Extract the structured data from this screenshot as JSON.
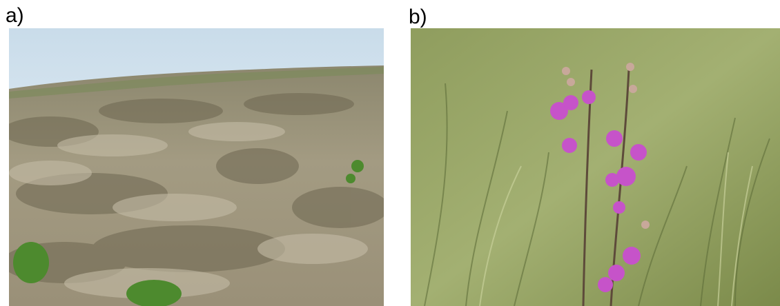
{
  "panels": [
    {
      "label": "a)",
      "image": "grassland-tussock-landscape",
      "colors": {
        "sky_top": "#c9dcea",
        "sky_bottom": "#f2f6f9",
        "grass_dry": "#a39b82",
        "grass_dark": "#6d6650",
        "green_shrub": "#4d8a2e"
      }
    },
    {
      "label": "b)",
      "image": "purple-flowering-plant-in-grass",
      "colors": {
        "grass_light": "#9fae6e",
        "grass_dark": "#5f6e3a",
        "flower": "#c653c9",
        "bud": "#c8a89a",
        "stem": "#5d4a3a"
      }
    }
  ]
}
